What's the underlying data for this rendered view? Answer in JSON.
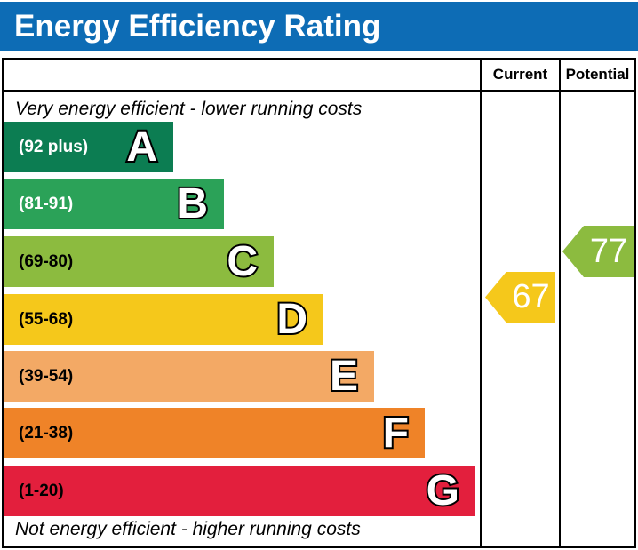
{
  "title": "Energy Efficiency Rating",
  "colors": {
    "title_bar": "#0d6cb5",
    "title_text": "#ffffff",
    "border": "#000000"
  },
  "table": {
    "columns": {
      "current": "Current",
      "potential": "Potential"
    }
  },
  "captions": {
    "top": "Very energy efficient - lower running costs",
    "bottom": "Not energy efficient - higher running costs"
  },
  "bands": [
    {
      "letter": "A",
      "range": "(92 plus)",
      "color": "#0c7d52",
      "label_color": "#ffffff"
    },
    {
      "letter": "B",
      "range": "(81-91)",
      "color": "#2ba258",
      "label_color": "#ffffff"
    },
    {
      "letter": "C",
      "range": "(69-80)",
      "color": "#8cbb3f",
      "label_color": "#000000"
    },
    {
      "letter": "D",
      "range": "(55-68)",
      "color": "#f5c81b",
      "label_color": "#000000"
    },
    {
      "letter": "E",
      "range": "(39-54)",
      "color": "#f3a965",
      "label_color": "#000000"
    },
    {
      "letter": "F",
      "range": "(21-38)",
      "color": "#ef8328",
      "label_color": "#000000"
    },
    {
      "letter": "G",
      "range": "(1-20)",
      "color": "#e31f3d",
      "label_color": "#000000"
    }
  ],
  "current": {
    "value": "67",
    "color": "#f5c81b"
  },
  "potential": {
    "value": "77",
    "color": "#8cbb3f"
  },
  "chart_data": {
    "type": "bar",
    "title": "Energy Efficiency Rating",
    "categories": [
      "A",
      "B",
      "C",
      "D",
      "E",
      "F",
      "G"
    ],
    "band_ranges": [
      "92 plus",
      "81-91",
      "69-80",
      "55-68",
      "39-54",
      "21-38",
      "1-20"
    ],
    "band_colors": [
      "#0c7d52",
      "#2ba258",
      "#8cbb3f",
      "#f5c81b",
      "#f3a965",
      "#ef8328",
      "#e31f3d"
    ],
    "series": [
      {
        "name": "Current",
        "value": 67,
        "band": "D"
      },
      {
        "name": "Potential",
        "value": 77,
        "band": "C"
      }
    ],
    "value_range": [
      1,
      100
    ],
    "annotations": [
      "Very energy efficient - lower running costs",
      "Not energy efficient - higher running costs"
    ]
  }
}
